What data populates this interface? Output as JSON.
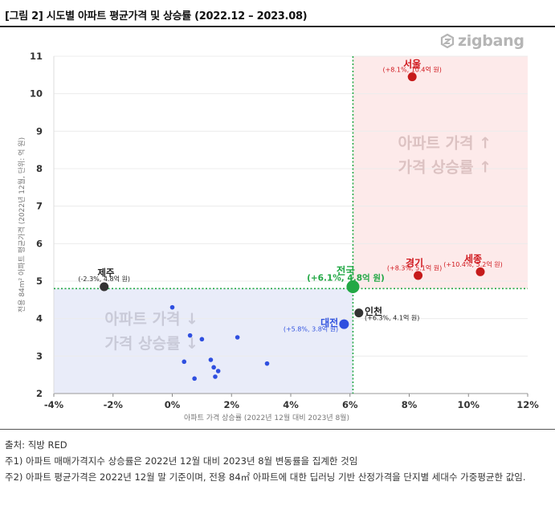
{
  "title": "[그림 2] 시도별 아파트 평균가격 및 상승률 (2022.12 – 2023.08)",
  "brand": "zigbang",
  "chart_data": {
    "type": "scatter",
    "xlabel": "아파트 가격 상승률 (2022년 12월 대비 2023년 8월)",
    "ylabel": "전용 84m² 아파트 평균가격 (2022년 12월, 단위: 억 원)",
    "xlim": [
      -4,
      12
    ],
    "ylim": [
      2,
      11
    ],
    "x_ticks": [
      -4,
      -2,
      0,
      2,
      4,
      6,
      8,
      10,
      12
    ],
    "x_tick_labels": [
      "-4%",
      "-2%",
      "0%",
      "2%",
      "4%",
      "6%",
      "8%",
      "10%",
      "12%"
    ],
    "y_ticks": [
      2,
      3,
      4,
      5,
      6,
      7,
      8,
      9,
      10,
      11
    ],
    "y_tick_labels": [
      "2",
      "3",
      "4",
      "5",
      "6",
      "7",
      "8",
      "9",
      "10",
      "11"
    ],
    "reference_lines": {
      "x": 6.1,
      "y": 4.8,
      "color": "#22a845"
    },
    "quadrants": {
      "upper_right": {
        "text_line1": "아파트 가격 ↑",
        "text_line2": "가격 상승률 ↑",
        "color": "#fdeaea"
      },
      "lower_left": {
        "text_line1": "아파트 가격 ↓",
        "text_line2": "가격 상승률 ↓",
        "color": "#e9ecf9"
      }
    },
    "labeled_points": [
      {
        "name": "서울",
        "x": 8.1,
        "y": 10.45,
        "detail": "(+8.1%, 10.4억 원)",
        "color": "#d0181e",
        "marker": "#c61a1a"
      },
      {
        "name": "세종",
        "x": 10.4,
        "y": 5.25,
        "detail": "(+10.4%, 5.2억 원)",
        "color": "#d0181e",
        "marker": "#c61a1a"
      },
      {
        "name": "경기",
        "x": 8.3,
        "y": 5.15,
        "detail": "(+8.3%, 5.1억 원)",
        "color": "#d0181e",
        "marker": "#c61a1a"
      },
      {
        "name": "전국",
        "x": 6.1,
        "y": 4.85,
        "detail": "(+6.1%, 4.8억 원)",
        "color": "#22a845",
        "marker": "#22a845"
      },
      {
        "name": "제주",
        "x": -2.3,
        "y": 4.85,
        "detail": "(-2.3%, 4.8억 원)",
        "color": "#222222",
        "marker": "#333333"
      },
      {
        "name": "인천",
        "x": 6.3,
        "y": 4.15,
        "detail": "(+6.3%, 4.1억 원)",
        "color": "#222222",
        "marker": "#333333"
      },
      {
        "name": "대전",
        "x": 5.8,
        "y": 3.85,
        "detail": "(+5.8%, 3.8억 원)",
        "color": "#3355e0",
        "marker": "#2f4fe0"
      }
    ],
    "other_points": {
      "color": "#2f4fe0",
      "points": [
        [
          0.0,
          4.3
        ],
        [
          0.6,
          3.55
        ],
        [
          1.0,
          3.45
        ],
        [
          2.2,
          3.5
        ],
        [
          0.4,
          2.85
        ],
        [
          1.3,
          2.9
        ],
        [
          3.2,
          2.8
        ],
        [
          1.4,
          2.7
        ],
        [
          1.55,
          2.6
        ],
        [
          0.75,
          2.4
        ],
        [
          1.45,
          2.45
        ]
      ]
    }
  },
  "notes": {
    "source": "출처: 직방 RED",
    "note1": "주1) 아파트 매매가격지수 상승률은 2022년 12월 대비 2023년 8월 변동률을 집계한 것임",
    "note2": "주2) 아파트 평균가격은 2022년 12월 말 기준이며, 전용 84㎡ 아파트에 대한 딥러닝 기반 산정가격을 단지별 세대수 가중평균한 값임."
  }
}
